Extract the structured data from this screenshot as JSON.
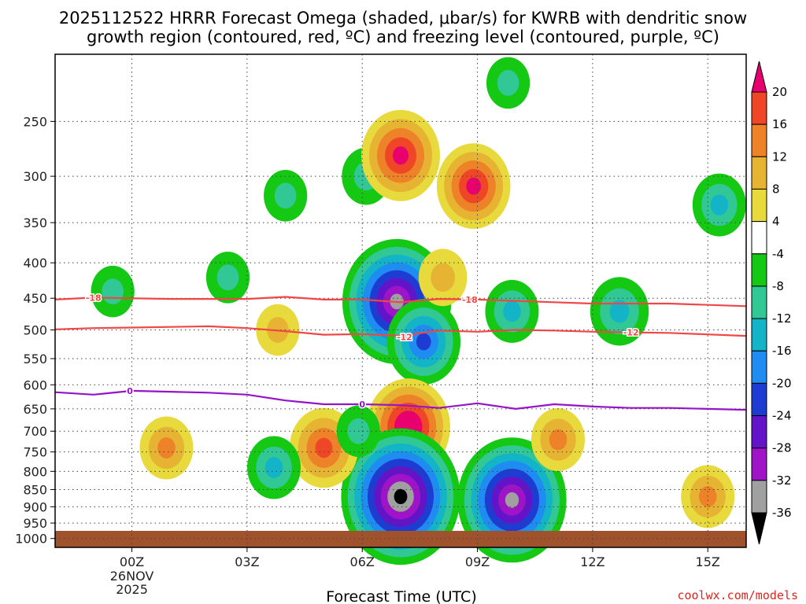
{
  "title_lines": [
    "2025112522 HRRR Forecast Omega (shaded, μbar/s) for KWRB with dendritic snow",
    "growth region (contoured, red, ºC) and freezing level (contoured, purple, ºC)"
  ],
  "credit": "coolwx.com/models",
  "chart_data": {
    "type": "heatmap",
    "title": "2025112522 HRRR Forecast Omega (shaded, μbar/s) for KWRB with dendritic snow growth region (contoured, red, ºC) and freezing level (contoured, purple, ºC)",
    "xlabel": "Forecast Time (UTC)",
    "ylabel": "",
    "x_ticks": [
      {
        "hour": 0,
        "label": "00Z",
        "sub": [
          "26NOV",
          "2025"
        ]
      },
      {
        "hour": 3,
        "label": "03Z",
        "sub": []
      },
      {
        "hour": 6,
        "label": "06Z",
        "sub": []
      },
      {
        "hour": 9,
        "label": "09Z",
        "sub": []
      },
      {
        "hour": 12,
        "label": "12Z",
        "sub": []
      },
      {
        "hour": 15,
        "label": "15Z",
        "sub": []
      }
    ],
    "xlim": [
      -2,
      16
    ],
    "y_ticks": [
      250,
      300,
      350,
      400,
      450,
      500,
      550,
      600,
      650,
      700,
      750,
      800,
      850,
      900,
      950,
      1000
    ],
    "ylim_hpa": [
      200,
      1030
    ],
    "colorbar": {
      "ticks": [
        "20",
        "16",
        "12",
        "8",
        "4",
        "-4",
        "-8",
        "-12",
        "-16",
        "-20",
        "-24",
        "-28",
        "-32",
        "-36"
      ],
      "bins": [
        {
          "color": "#e8006e"
        },
        {
          "color": "#f04628"
        },
        {
          "color": "#ee8228"
        },
        {
          "color": "#e6b432"
        },
        {
          "color": "#e8da3c"
        },
        {
          "color": "#ffffff"
        },
        {
          "color": "#14c814"
        },
        {
          "color": "#32c896"
        },
        {
          "color": "#14b4c8"
        },
        {
          "color": "#1e8cf0"
        },
        {
          "color": "#1e3cd2"
        },
        {
          "color": "#6414c8"
        },
        {
          "color": "#a014c8"
        },
        {
          "color": "#a0a0a0"
        },
        {
          "color": "#000000"
        }
      ]
    },
    "omega_features": [
      {
        "t": -0.5,
        "p": 440,
        "v": -6,
        "kind": "green"
      },
      {
        "t": 2.5,
        "p": 420,
        "v": -6,
        "kind": "green"
      },
      {
        "t": 4.0,
        "p": 320,
        "v": -6,
        "kind": "green"
      },
      {
        "t": 6.1,
        "p": 300,
        "v": -8,
        "kind": "green"
      },
      {
        "t": 6.9,
        "p": 455,
        "v": -32,
        "kind": "neg"
      },
      {
        "t": 7.6,
        "p": 520,
        "v": -18,
        "kind": "neg"
      },
      {
        "t": 7.0,
        "p": 280,
        "v": 20,
        "kind": "pos"
      },
      {
        "t": 8.9,
        "p": 310,
        "v": 18,
        "kind": "pos"
      },
      {
        "t": 8.1,
        "p": 420,
        "v": 8,
        "kind": "pos"
      },
      {
        "t": 9.8,
        "p": 220,
        "v": -6,
        "kind": "green"
      },
      {
        "t": 9.9,
        "p": 470,
        "v": -10,
        "kind": "green"
      },
      {
        "t": 12.7,
        "p": 470,
        "v": -12,
        "kind": "green"
      },
      {
        "t": 15.3,
        "p": 330,
        "v": -10,
        "kind": "green"
      },
      {
        "t": 7.2,
        "p": 690,
        "v": 22,
        "kind": "pos"
      },
      {
        "t": 7.0,
        "p": 870,
        "v": -36,
        "kind": "neg"
      },
      {
        "t": 9.9,
        "p": 880,
        "v": -32,
        "kind": "neg"
      },
      {
        "t": 5.0,
        "p": 740,
        "v": 16,
        "kind": "pos"
      },
      {
        "t": 3.8,
        "p": 500,
        "v": 6,
        "kind": "pos"
      },
      {
        "t": 0.9,
        "p": 740,
        "v": 10,
        "kind": "pos"
      },
      {
        "t": 11.1,
        "p": 720,
        "v": 10,
        "kind": "pos"
      },
      {
        "t": 15.0,
        "p": 870,
        "v": 10,
        "kind": "pos"
      },
      {
        "t": 3.7,
        "p": 790,
        "v": -10,
        "kind": "green"
      },
      {
        "t": 5.9,
        "p": 700,
        "v": -6,
        "kind": "green"
      }
    ],
    "contours": [
      {
        "name": "-18",
        "color": "#f04646",
        "points": [
          [
            -2,
            452
          ],
          [
            -1,
            449
          ],
          [
            1,
            451
          ],
          [
            3,
            451
          ],
          [
            4,
            448
          ],
          [
            5,
            452
          ],
          [
            6,
            452
          ],
          [
            7,
            456
          ],
          [
            8,
            451
          ],
          [
            9,
            452
          ],
          [
            10,
            454
          ],
          [
            11,
            456
          ],
          [
            12,
            458
          ],
          [
            14,
            458
          ],
          [
            16,
            462
          ]
        ],
        "labels": [
          {
            "t": -1.0,
            "p": 449
          },
          {
            "t": 8.8,
            "p": 452
          }
        ]
      },
      {
        "name": "-12",
        "color": "#f04646",
        "points": [
          [
            -2,
            499
          ],
          [
            -1,
            497
          ],
          [
            0,
            496
          ],
          [
            1,
            495
          ],
          [
            2,
            494
          ],
          [
            3,
            497
          ],
          [
            4,
            502
          ],
          [
            5,
            508
          ],
          [
            6,
            507
          ],
          [
            7,
            510
          ],
          [
            8,
            501
          ],
          [
            9,
            503
          ],
          [
            10,
            500
          ],
          [
            11,
            501
          ],
          [
            12,
            503
          ],
          [
            13,
            504
          ],
          [
            14,
            505
          ],
          [
            16,
            510
          ]
        ],
        "labels": [
          {
            "t": 7.1,
            "p": 512
          },
          {
            "t": 13.0,
            "p": 504
          }
        ]
      },
      {
        "name": "0",
        "color": "#9614c8",
        "points": [
          [
            -2,
            615
          ],
          [
            -1,
            620
          ],
          [
            0,
            612
          ],
          [
            1,
            614
          ],
          [
            2,
            616
          ],
          [
            3,
            620
          ],
          [
            4,
            632
          ],
          [
            5,
            640
          ],
          [
            6,
            640
          ],
          [
            7,
            642
          ],
          [
            8,
            648
          ],
          [
            9,
            638
          ],
          [
            10,
            650
          ],
          [
            11,
            640
          ],
          [
            12,
            645
          ],
          [
            13,
            648
          ],
          [
            14,
            648
          ],
          [
            16,
            652
          ]
        ],
        "labels": [
          {
            "t": -0.05,
            "p": 612
          },
          {
            "t": 6.0,
            "p": 640
          }
        ]
      }
    ]
  }
}
